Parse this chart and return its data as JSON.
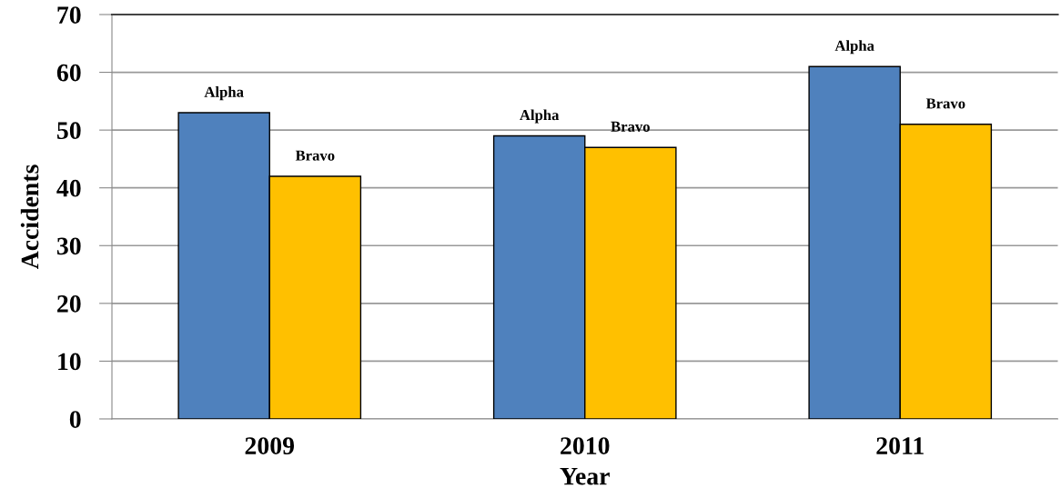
{
  "chart_data": {
    "type": "bar",
    "xlabel": "Year",
    "ylabel": "Accidents",
    "categories": [
      "2009",
      "2010",
      "2011"
    ],
    "series": [
      {
        "name": "Alpha",
        "color": "#4f81bd",
        "values": [
          53,
          49,
          61
        ]
      },
      {
        "name": "Bravo",
        "color": "#ffc000",
        "values": [
          42,
          47,
          51
        ]
      }
    ],
    "ylim": [
      0,
      70
    ],
    "yticks": [
      0,
      10,
      20,
      30,
      40,
      50,
      60,
      70
    ],
    "grid": "y",
    "legend": false
  }
}
